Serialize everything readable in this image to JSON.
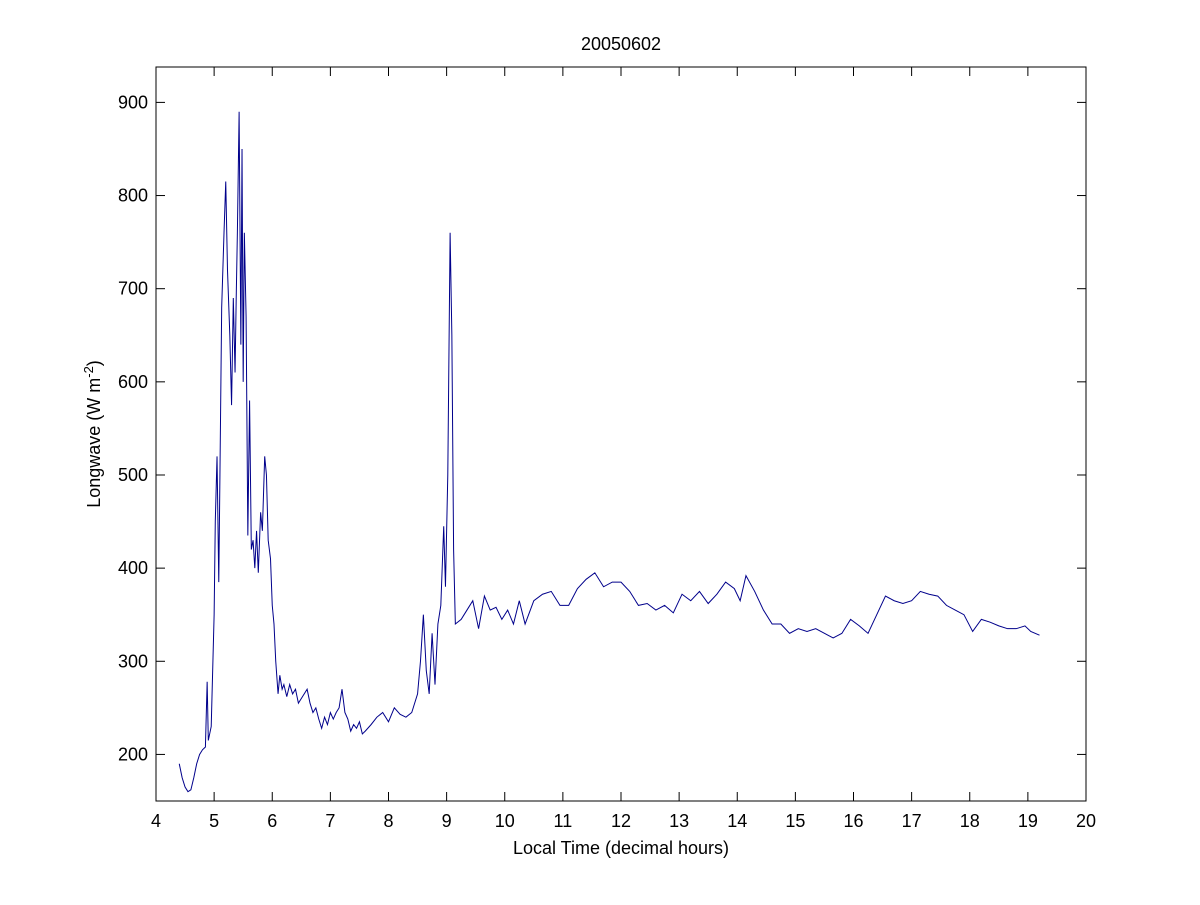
{
  "chart_data": {
    "type": "line",
    "title": "20050602",
    "xlabel": "Local Time (decimal hours)",
    "ylabel_parts": [
      "Longwave (W m",
      "-2",
      ")"
    ],
    "xlim": [
      4,
      20
    ],
    "ylim": [
      150,
      938
    ],
    "xticks": [
      4,
      5,
      6,
      7,
      8,
      9,
      10,
      11,
      12,
      13,
      14,
      15,
      16,
      17,
      18,
      19,
      20
    ],
    "yticks": [
      200,
      300,
      400,
      500,
      600,
      700,
      800,
      900
    ],
    "grid": false,
    "series": [
      {
        "color": "#00008b",
        "x": [
          4.4,
          4.45,
          4.5,
          4.55,
          4.6,
          4.65,
          4.7,
          4.75,
          4.8,
          4.85,
          4.88,
          4.9,
          4.95,
          5.0,
          5.02,
          5.05,
          5.08,
          5.1,
          5.13,
          5.17,
          5.2,
          5.23,
          5.27,
          5.3,
          5.33,
          5.36,
          5.38,
          5.4,
          5.43,
          5.46,
          5.48,
          5.5,
          5.52,
          5.55,
          5.58,
          5.61,
          5.64,
          5.67,
          5.7,
          5.73,
          5.76,
          5.8,
          5.83,
          5.87,
          5.9,
          5.93,
          5.97,
          6.0,
          6.03,
          6.06,
          6.1,
          6.13,
          6.17,
          6.2,
          6.25,
          6.3,
          6.35,
          6.4,
          6.45,
          6.5,
          6.55,
          6.6,
          6.65,
          6.7,
          6.75,
          6.8,
          6.85,
          6.9,
          6.95,
          7.0,
          7.05,
          7.1,
          7.15,
          7.2,
          7.25,
          7.3,
          7.35,
          7.4,
          7.45,
          7.5,
          7.55,
          7.6,
          7.7,
          7.8,
          7.9,
          8.0,
          8.1,
          8.2,
          8.3,
          8.4,
          8.5,
          8.55,
          8.6,
          8.65,
          8.7,
          8.75,
          8.8,
          8.85,
          8.9,
          8.95,
          8.98,
          9.02,
          9.06,
          9.09,
          9.12,
          9.15,
          9.25,
          9.35,
          9.45,
          9.55,
          9.65,
          9.75,
          9.85,
          9.95,
          10.05,
          10.15,
          10.25,
          10.35,
          10.5,
          10.65,
          10.8,
          10.95,
          11.1,
          11.25,
          11.4,
          11.55,
          11.7,
          11.85,
          12.0,
          12.15,
          12.3,
          12.45,
          12.6,
          12.75,
          12.9,
          13.05,
          13.2,
          13.35,
          13.5,
          13.65,
          13.8,
          13.95,
          14.05,
          14.15,
          14.3,
          14.45,
          14.6,
          14.75,
          14.9,
          15.05,
          15.2,
          15.35,
          15.5,
          15.65,
          15.8,
          15.95,
          16.1,
          16.25,
          16.4,
          16.55,
          16.7,
          16.85,
          17.0,
          17.15,
          17.3,
          17.45,
          17.6,
          17.75,
          17.9,
          18.05,
          18.2,
          18.35,
          18.5,
          18.65,
          18.8,
          18.95,
          19.05,
          19.2
        ],
        "values": [
          190,
          175,
          165,
          160,
          162,
          175,
          190,
          200,
          205,
          208,
          278,
          215,
          230,
          350,
          450,
          520,
          385,
          500,
          680,
          760,
          815,
          720,
          650,
          575,
          690,
          610,
          690,
          760,
          890,
          640,
          850,
          600,
          760,
          670,
          435,
          580,
          420,
          430,
          400,
          440,
          395,
          460,
          440,
          520,
          500,
          430,
          410,
          360,
          340,
          300,
          265,
          285,
          270,
          275,
          262,
          275,
          265,
          270,
          255,
          260,
          265,
          270,
          255,
          245,
          250,
          238,
          228,
          240,
          232,
          245,
          238,
          245,
          250,
          270,
          245,
          238,
          225,
          232,
          228,
          235,
          222,
          225,
          232,
          240,
          245,
          235,
          250,
          243,
          240,
          245,
          265,
          300,
          350,
          290,
          265,
          330,
          275,
          340,
          360,
          445,
          380,
          500,
          760,
          650,
          420,
          340,
          345,
          355,
          365,
          335,
          370,
          355,
          358,
          345,
          355,
          340,
          365,
          340,
          365,
          372,
          375,
          360,
          360,
          378,
          388,
          395,
          380,
          385,
          385,
          375,
          360,
          362,
          355,
          360,
          352,
          372,
          365,
          375,
          362,
          372,
          385,
          378,
          365,
          392,
          375,
          355,
          340,
          340,
          330,
          335,
          332,
          335,
          330,
          325,
          330,
          345,
          338,
          330,
          350,
          370,
          365,
          362,
          365,
          375,
          372,
          370,
          360,
          355,
          350,
          332,
          345,
          342,
          338,
          335,
          335,
          338,
          332,
          328
        ]
      }
    ]
  }
}
